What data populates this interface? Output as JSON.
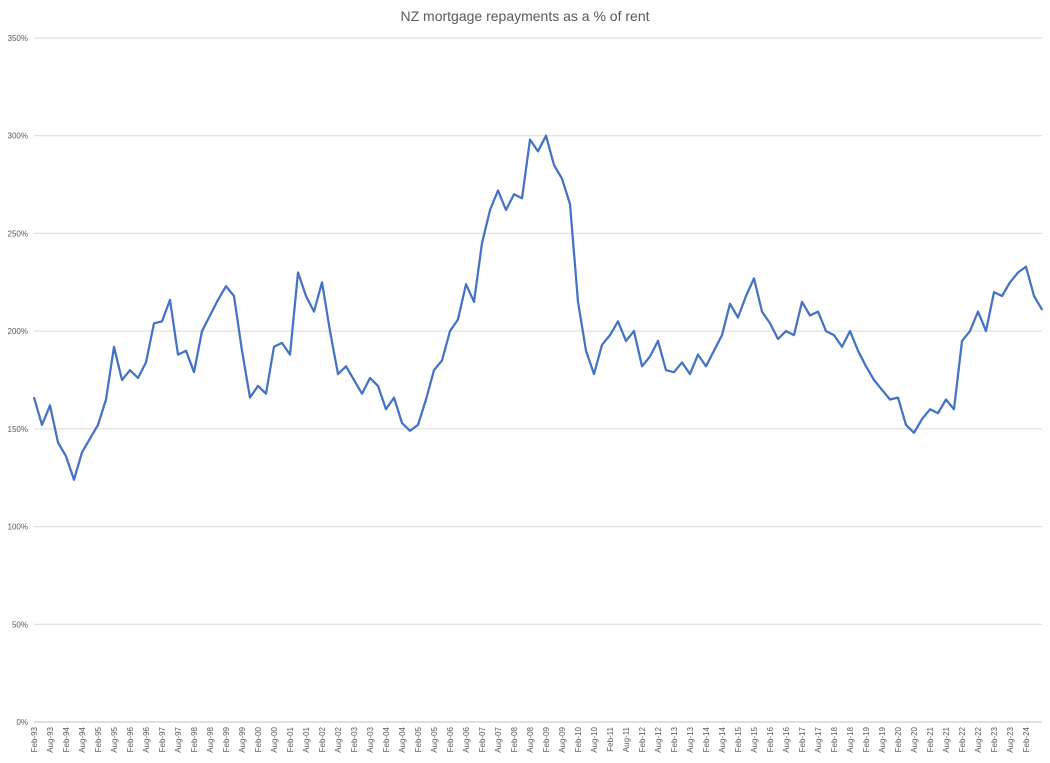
{
  "chart_data": {
    "type": "line",
    "title": "NZ mortgage repayments as a % of rent",
    "xlabel": "",
    "ylabel": "",
    "ylim": [
      0,
      350
    ],
    "yticks": [
      0,
      50,
      100,
      150,
      200,
      250,
      300,
      350
    ],
    "ytick_labels": [
      "0%",
      "50%",
      "100%",
      "150%",
      "200%",
      "250%",
      "300%",
      "350%"
    ],
    "grid": true,
    "legend": "none",
    "x_start": "Feb-93",
    "x_end": "Aug-24",
    "xtick_labels": [
      "Feb-93",
      "Aug-93",
      "Feb-94",
      "Aug-94",
      "Feb-95",
      "Aug-95",
      "Feb-96",
      "Aug-96",
      "Feb-97",
      "Aug-97",
      "Feb-98",
      "Aug-98",
      "Feb-99",
      "Aug-99",
      "Feb-00",
      "Aug-00",
      "Feb-01",
      "Aug-01",
      "Feb-02",
      "Aug-02",
      "Feb-03",
      "Aug-03",
      "Feb-04",
      "Aug-04",
      "Feb-05",
      "Aug-05",
      "Feb-06",
      "Aug-06",
      "Feb-07",
      "Aug-07",
      "Feb-08",
      "Aug-08",
      "Feb-09",
      "Aug-09",
      "Feb-10",
      "Aug-10",
      "Feb-11",
      "Aug-11",
      "Feb-12",
      "Aug-12",
      "Feb-13",
      "Aug-13",
      "Feb-14",
      "Aug-14",
      "Feb-15",
      "Aug-15",
      "Feb-16",
      "Aug-16",
      "Feb-17",
      "Aug-17",
      "Feb-18",
      "Aug-18",
      "Feb-19",
      "Aug-19",
      "Feb-20",
      "Aug-20",
      "Feb-21",
      "Aug-21",
      "Feb-22",
      "Aug-22",
      "Feb-23",
      "Aug-23",
      "Feb-24"
    ],
    "series": [
      {
        "color": "#4472c4",
        "points": [
          [
            "Feb-93",
            166
          ],
          [
            "May-93",
            152
          ],
          [
            "Aug-93",
            162
          ],
          [
            "Nov-93",
            143
          ],
          [
            "Feb-94",
            136
          ],
          [
            "May-94",
            124
          ],
          [
            "Aug-94",
            138
          ],
          [
            "Nov-94",
            145
          ],
          [
            "Feb-95",
            152
          ],
          [
            "May-95",
            165
          ],
          [
            "Aug-95",
            192
          ],
          [
            "Nov-95",
            175
          ],
          [
            "Feb-96",
            180
          ],
          [
            "May-96",
            176
          ],
          [
            "Aug-96",
            184
          ],
          [
            "Nov-96",
            204
          ],
          [
            "Feb-97",
            205
          ],
          [
            "May-97",
            216
          ],
          [
            "Aug-97",
            188
          ],
          [
            "Nov-97",
            190
          ],
          [
            "Feb-98",
            179
          ],
          [
            "May-98",
            200
          ],
          [
            "Aug-98",
            208
          ],
          [
            "Nov-98",
            216
          ],
          [
            "Feb-99",
            223
          ],
          [
            "May-99",
            218
          ],
          [
            "Aug-99",
            190
          ],
          [
            "Nov-99",
            166
          ],
          [
            "Feb-00",
            172
          ],
          [
            "May-00",
            168
          ],
          [
            "Aug-00",
            192
          ],
          [
            "Nov-00",
            194
          ],
          [
            "Feb-01",
            188
          ],
          [
            "May-01",
            230
          ],
          [
            "Aug-01",
            218
          ],
          [
            "Nov-01",
            210
          ],
          [
            "Feb-02",
            225
          ],
          [
            "May-02",
            200
          ],
          [
            "Aug-02",
            178
          ],
          [
            "Nov-02",
            182
          ],
          [
            "Feb-03",
            175
          ],
          [
            "May-03",
            168
          ],
          [
            "Aug-03",
            176
          ],
          [
            "Nov-03",
            172
          ],
          [
            "Feb-04",
            160
          ],
          [
            "May-04",
            166
          ],
          [
            "Aug-04",
            153
          ],
          [
            "Nov-04",
            149
          ],
          [
            "Feb-05",
            152
          ],
          [
            "May-05",
            165
          ],
          [
            "Aug-05",
            180
          ],
          [
            "Nov-05",
            185
          ],
          [
            "Feb-06",
            200
          ],
          [
            "May-06",
            206
          ],
          [
            "Aug-06",
            224
          ],
          [
            "Nov-06",
            215
          ],
          [
            "Feb-07",
            245
          ],
          [
            "May-07",
            262
          ],
          [
            "Aug-07",
            272
          ],
          [
            "Nov-07",
            262
          ],
          [
            "Feb-08",
            270
          ],
          [
            "May-08",
            268
          ],
          [
            "Aug-08",
            298
          ],
          [
            "Nov-08",
            292
          ],
          [
            "Feb-09",
            300
          ],
          [
            "May-09",
            285
          ],
          [
            "Aug-09",
            278
          ],
          [
            "Nov-09",
            265
          ],
          [
            "Feb-10",
            215
          ],
          [
            "May-10",
            190
          ],
          [
            "Aug-10",
            178
          ],
          [
            "Nov-10",
            193
          ],
          [
            "Feb-11",
            198
          ],
          [
            "May-11",
            205
          ],
          [
            "Aug-11",
            195
          ],
          [
            "Nov-11",
            200
          ],
          [
            "Feb-12",
            182
          ],
          [
            "May-12",
            187
          ],
          [
            "Aug-12",
            195
          ],
          [
            "Nov-12",
            180
          ],
          [
            "Feb-13",
            179
          ],
          [
            "May-13",
            184
          ],
          [
            "Aug-13",
            178
          ],
          [
            "Nov-13",
            188
          ],
          [
            "Feb-14",
            182
          ],
          [
            "May-14",
            190
          ],
          [
            "Aug-14",
            198
          ],
          [
            "Nov-14",
            214
          ],
          [
            "Feb-15",
            207
          ],
          [
            "May-15",
            218
          ],
          [
            "Aug-15",
            227
          ],
          [
            "Nov-15",
            210
          ],
          [
            "Feb-16",
            204
          ],
          [
            "May-16",
            196
          ],
          [
            "Aug-16",
            200
          ],
          [
            "Nov-16",
            198
          ],
          [
            "Feb-17",
            215
          ],
          [
            "May-17",
            208
          ],
          [
            "Aug-17",
            210
          ],
          [
            "Nov-17",
            200
          ],
          [
            "Feb-18",
            198
          ],
          [
            "May-18",
            192
          ],
          [
            "Aug-18",
            200
          ],
          [
            "Nov-18",
            190
          ],
          [
            "Feb-19",
            182
          ],
          [
            "May-19",
            175
          ],
          [
            "Aug-19",
            170
          ],
          [
            "Nov-19",
            165
          ],
          [
            "Feb-20",
            166
          ],
          [
            "May-20",
            152
          ],
          [
            "Aug-20",
            148
          ],
          [
            "Nov-20",
            155
          ],
          [
            "Feb-21",
            160
          ],
          [
            "May-21",
            158
          ],
          [
            "Aug-21",
            165
          ],
          [
            "Nov-21",
            160
          ],
          [
            "Feb-22",
            195
          ],
          [
            "May-22",
            200
          ],
          [
            "Aug-22",
            210
          ],
          [
            "Nov-22",
            200
          ],
          [
            "Feb-23",
            220
          ],
          [
            "May-23",
            218
          ],
          [
            "Aug-23",
            225
          ],
          [
            "Nov-23",
            230
          ],
          [
            "Feb-24",
            233
          ],
          [
            "May-24",
            218
          ],
          [
            "Aug-24",
            211
          ]
        ]
      }
    ]
  }
}
